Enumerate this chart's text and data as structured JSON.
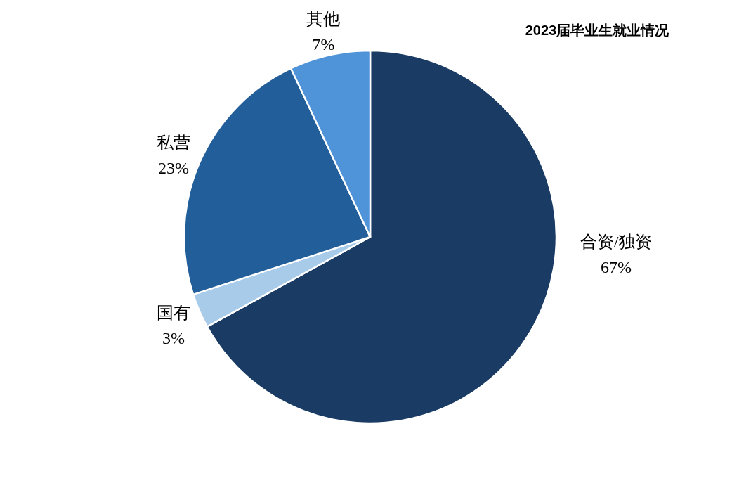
{
  "chart_data": {
    "type": "pie",
    "title": "2023届毕业生就业情况",
    "categories": [
      "合资/独资",
      "国有",
      "私营",
      "其他"
    ],
    "values": [
      67,
      3,
      23,
      7
    ],
    "value_labels": [
      "67%",
      "3%",
      "23%",
      "7%"
    ],
    "colors": [
      "#1a3c64",
      "#a9cbea",
      "#215e9a",
      "#4f94d8"
    ]
  }
}
